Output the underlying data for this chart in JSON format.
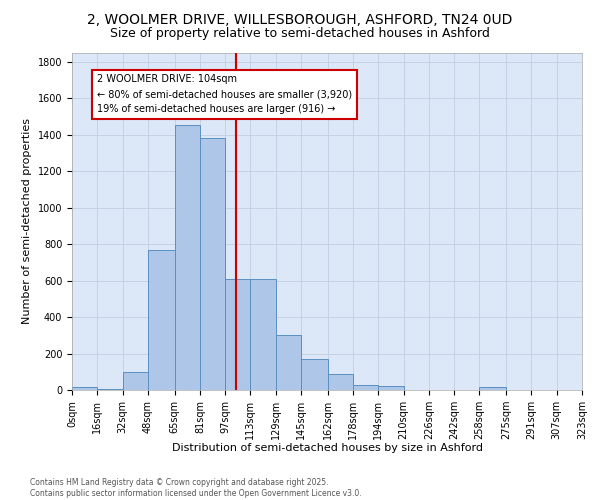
{
  "title1": "2, WOOLMER DRIVE, WILLESBOROUGH, ASHFORD, TN24 0UD",
  "title2": "Size of property relative to semi-detached houses in Ashford",
  "xlabel": "Distribution of semi-detached houses by size in Ashford",
  "ylabel": "Number of semi-detached properties",
  "bar_edges": [
    0,
    16,
    32,
    48,
    65,
    81,
    97,
    113,
    129,
    145,
    162,
    178,
    194,
    210,
    226,
    242,
    258,
    275,
    291,
    307,
    323
  ],
  "bar_heights": [
    15,
    5,
    100,
    770,
    1450,
    1380,
    610,
    610,
    300,
    170,
    90,
    30,
    20,
    0,
    0,
    0,
    15,
    0,
    0,
    0
  ],
  "bar_color": "#aec6e8",
  "bar_edgecolor": "#5a8fc2",
  "vline_x": 104,
  "vline_color": "#cc0000",
  "annotation_text": "2 WOOLMER DRIVE: 104sqm\n← 80% of semi-detached houses are smaller (3,920)\n19% of semi-detached houses are larger (916) →",
  "annotation_box_color": "#ffffff",
  "annotation_box_edgecolor": "#cc0000",
  "ylim": [
    0,
    1850
  ],
  "yticks": [
    0,
    200,
    400,
    600,
    800,
    1000,
    1200,
    1400,
    1600,
    1800
  ],
  "xtick_labels": [
    "0sqm",
    "16sqm",
    "32sqm",
    "48sqm",
    "65sqm",
    "81sqm",
    "97sqm",
    "113sqm",
    "129sqm",
    "145sqm",
    "162sqm",
    "178sqm",
    "194sqm",
    "210sqm",
    "226sqm",
    "242sqm",
    "258sqm",
    "275sqm",
    "291sqm",
    "307sqm",
    "323sqm"
  ],
  "footnote": "Contains HM Land Registry data © Crown copyright and database right 2025.\nContains public sector information licensed under the Open Government Licence v3.0.",
  "bg_color": "#ffffff",
  "plot_bg_color": "#dce8f8",
  "grid_color": "#c0cfe0",
  "title_fontsize": 10,
  "subtitle_fontsize": 9,
  "tick_fontsize": 7,
  "ylabel_fontsize": 8,
  "xlabel_fontsize": 8,
  "footnote_fontsize": 5.5
}
